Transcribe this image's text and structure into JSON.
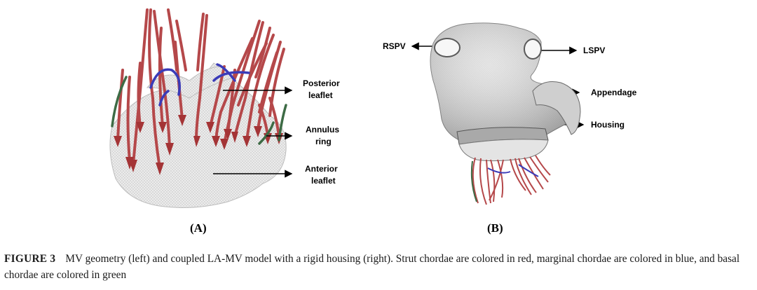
{
  "figure": {
    "panel_a": {
      "label": "(A)",
      "annotations": {
        "posterior_leaflet": [
          "Posterior",
          "leaflet"
        ],
        "annulus_ring": [
          "Annulus",
          "ring"
        ],
        "anterior_leaflet": [
          "Anterior",
          "leaflet"
        ]
      }
    },
    "panel_b": {
      "label": "(B)",
      "annotations": {
        "rspv": "RSPV",
        "lspv": "LSPV",
        "appendage": "Appendage",
        "housing": "Housing"
      }
    },
    "colors": {
      "strut_chordae": "#b5484a",
      "marginal_chordae": "#3b3bb8",
      "basal_chordae": "#3d6b45",
      "mesh": "#d4d4d4"
    }
  },
  "caption": {
    "label": "FIGURE 3",
    "text": "MV geometry (left) and coupled LA-MV model with a rigid housing (right). Strut chordae are colored in red, marginal chordae are colored in blue, and basal chordae are colored in green"
  }
}
